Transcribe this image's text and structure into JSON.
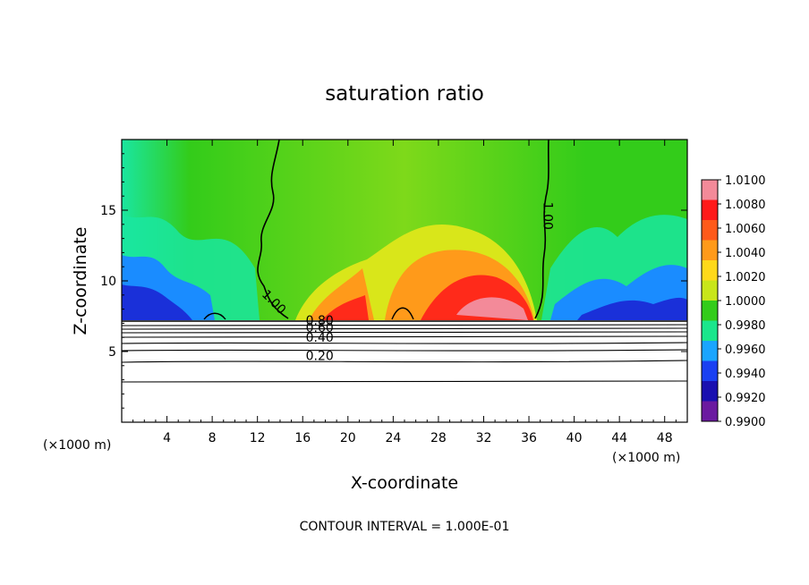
{
  "chart_data": {
    "type": "heatmap",
    "title": "saturation ratio",
    "xlabel": "X-coordinate",
    "ylabel": "Z-coordinate",
    "x_unit": "(×1000 m)",
    "x_unit_right": "(×1000 m)",
    "footer": "CONTOUR INTERVAL = 1.000E-01",
    "xlim": [
      0,
      50
    ],
    "ylim": [
      0,
      20
    ],
    "x_ticks": [
      4,
      8,
      12,
      16,
      20,
      24,
      28,
      32,
      36,
      40,
      44,
      48
    ],
    "y_ticks": [
      5,
      10,
      15
    ],
    "grid": false,
    "colorbar": {
      "levels": [
        "1.0100",
        "1.0080",
        "1.0060",
        "1.0040",
        "1.0020",
        "1.0000",
        "0.9980",
        "0.9960",
        "0.9940",
        "0.9920",
        "0.9900"
      ],
      "colors": [
        "#f38a99",
        "#ff1a1a",
        "#ff5a1a",
        "#ff9a1a",
        "#ffd91a",
        "#c8e61a",
        "#33cc1a",
        "#1ae68c",
        "#1aa5ff",
        "#1a40f2",
        "#1a10b0",
        "#6b1aa0"
      ]
    },
    "contour_labels": [
      {
        "text": "1.00",
        "x": 13.2,
        "z": 8.3
      },
      {
        "text": "1.00",
        "x": 37.3,
        "z": 14.6
      },
      {
        "text": "0.80",
        "x": 17.5,
        "z": 6.9
      },
      {
        "text": "0.60",
        "x": 17.5,
        "z": 6.4
      },
      {
        "text": "0.40",
        "x": 17.5,
        "z": 5.7
      },
      {
        "text": "0.20",
        "x": 17.5,
        "z": 4.4
      }
    ]
  }
}
